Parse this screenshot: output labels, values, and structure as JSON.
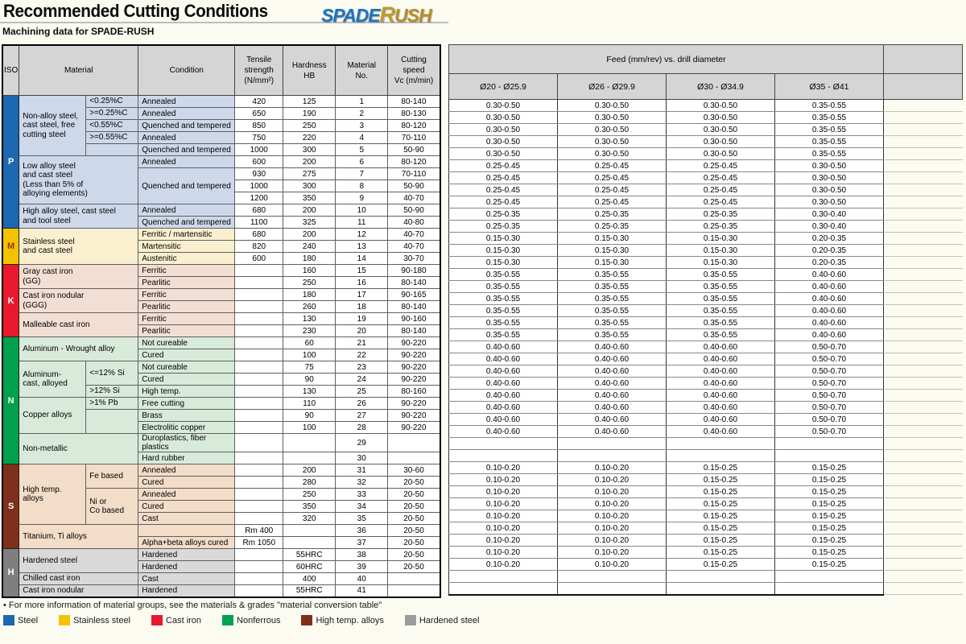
{
  "header": {
    "title": "Recommended Cutting Conditions",
    "subtitle": "Machining data for SPADE-RUSH",
    "logo": {
      "spade": "SPADE",
      "r": "R",
      "ush": "USH"
    }
  },
  "left_table": {
    "columns": {
      "iso": "ISO",
      "material": "Material",
      "condition": "Condition",
      "tensile": "Tensile\nstrength\n(N/mm²)",
      "hardness": "Hardness\nHB",
      "material_no": "Material\nNo.",
      "cutting_speed": "Cutting\nspeed\nVc (m/min)"
    },
    "sections": [
      {
        "iso": "P",
        "color": "#1b68b0",
        "letter_color": "#ffffff",
        "tint": "#cdd8ea",
        "groups": [
          {
            "material": "Non-alloy steel,\ncast steel, free\ncutting steel",
            "subs": [
              {
                "label": "<0.25%C",
                "rows": 1
              },
              {
                "label": ">=0.25%C",
                "rows": 1
              },
              {
                "label": "<0.55%C",
                "rows": 1
              },
              {
                "label": ">=0.55%C",
                "rows": 1
              },
              {
                "label": "",
                "rows": 1
              }
            ],
            "rows": [
              {
                "condition": "Annealed",
                "tensile": "420",
                "hardness": "125",
                "no": "1",
                "vc": "80-140"
              },
              {
                "condition": "Annealed",
                "tensile": "650",
                "hardness": "190",
                "no": "2",
                "vc": "80-130"
              },
              {
                "condition": "Quenched and tempered",
                "tensile": "850",
                "hardness": "250",
                "no": "3",
                "vc": "80-120"
              },
              {
                "condition": "Annealed",
                "tensile": "750",
                "hardness": "220",
                "no": "4",
                "vc": "70-110"
              },
              {
                "condition": "Quenched and tempered",
                "tensile": "1000",
                "hardness": "300",
                "no": "5",
                "vc": "50-90"
              }
            ]
          },
          {
            "material": "Low alloy steel\nand cast steel\n(Less than 5% of\nalloying elements)",
            "rows": [
              {
                "condition": "Annealed",
                "tensile": "600",
                "hardness": "200",
                "no": "6",
                "vc": "80-120"
              },
              {
                "condition": "Quenched and tempered",
                "condition_rows": 3,
                "tensile": "930",
                "hardness": "275",
                "no": "7",
                "vc": "70-110"
              },
              {
                "tensile": "1000",
                "hardness": "300",
                "no": "8",
                "vc": "50-90"
              },
              {
                "tensile": "1200",
                "hardness": "350",
                "no": "9",
                "vc": "40-70"
              }
            ]
          },
          {
            "material": "High alloy steel, cast steel\nand tool steel",
            "rows": [
              {
                "condition": "Annealed",
                "tensile": "680",
                "hardness": "200",
                "no": "10",
                "vc": "50-90"
              },
              {
                "condition": "Quenched and tempered",
                "tensile": "1100",
                "hardness": "325",
                "no": "11",
                "vc": "40-80"
              }
            ]
          }
        ]
      },
      {
        "iso": "M",
        "color": "#f4c300",
        "letter_color": "#9b3000",
        "tint": "#faf0cf",
        "groups": [
          {
            "material": "Stainless steel\nand cast steel",
            "rows": [
              {
                "condition": "Ferritic / martensitic",
                "tensile": "680",
                "hardness": "200",
                "no": "12",
                "vc": "40-70"
              },
              {
                "condition": "Martensitic",
                "tensile": "820",
                "hardness": "240",
                "no": "13",
                "vc": "40-70"
              },
              {
                "condition": "Austenitic",
                "tensile": "600",
                "hardness": "180",
                "no": "14",
                "vc": "30-70"
              }
            ]
          }
        ]
      },
      {
        "iso": "K",
        "color": "#e8192d",
        "letter_color": "#ffffff",
        "tint": "#f3ded3",
        "groups": [
          {
            "material": "Gray cast iron\n(GG)",
            "rows": [
              {
                "condition": "Ferritic",
                "tensile": "",
                "hardness": "160",
                "no": "15",
                "vc": "90-180"
              },
              {
                "condition": "Pearlitic",
                "tensile": "",
                "hardness": "250",
                "no": "16",
                "vc": "80-140"
              }
            ]
          },
          {
            "material": "Cast iron nodular\n(GGG)",
            "rows": [
              {
                "condition": "Ferritic",
                "tensile": "",
                "hardness": "180",
                "no": "17",
                "vc": "90-165"
              },
              {
                "condition": "Pearlitic",
                "tensile": "",
                "hardness": "260",
                "no": "18",
                "vc": "80-140"
              }
            ]
          },
          {
            "material": "Malleable cast iron",
            "rows": [
              {
                "condition": "Ferritic",
                "tensile": "",
                "hardness": "130",
                "no": "19",
                "vc": "90-160"
              },
              {
                "condition": "Pearlitic",
                "tensile": "",
                "hardness": "230",
                "no": "20",
                "vc": "80-140"
              }
            ]
          }
        ]
      },
      {
        "iso": "N",
        "color": "#00a04e",
        "letter_color": "#ffffff",
        "tint": "#d8ebdb",
        "groups": [
          {
            "material": "Aluminum - Wrought alloy",
            "rows": [
              {
                "condition": "Not cureable",
                "tensile": "",
                "hardness": "60",
                "no": "21",
                "vc": "90-220"
              },
              {
                "condition": "Cured",
                "tensile": "",
                "hardness": "100",
                "no": "22",
                "vc": "90-220"
              }
            ]
          },
          {
            "material": "Aluminum-\ncast, alloyed",
            "subs": [
              {
                "label": "<=12% Si",
                "rows": 2
              },
              {
                "label": ">12% Si",
                "rows": 1
              }
            ],
            "rows": [
              {
                "condition": "Not cureable",
                "tensile": "",
                "hardness": "75",
                "no": "23",
                "vc": "90-220"
              },
              {
                "condition": "Cured",
                "tensile": "",
                "hardness": "90",
                "no": "24",
                "vc": "90-220"
              },
              {
                "condition": "High temp.",
                "tensile": "",
                "hardness": "130",
                "no": "25",
                "vc": "80-160"
              }
            ]
          },
          {
            "material": "Copper alloys",
            "subs": [
              {
                "label": ">1% Pb",
                "rows": 1
              },
              {
                "label": "",
                "rows": 2
              }
            ],
            "rows": [
              {
                "condition": "Free cutting",
                "tensile": "",
                "hardness": "110",
                "no": "26",
                "vc": "90-220"
              },
              {
                "condition": "Brass",
                "tensile": "",
                "hardness": "90",
                "no": "27",
                "vc": "90-220"
              },
              {
                "condition": "Electrolitic copper",
                "tensile": "",
                "hardness": "100",
                "no": "28",
                "vc": "90-220"
              }
            ]
          },
          {
            "material": "Non-metallic",
            "rows": [
              {
                "condition": "Duroplastics, fiber plastics",
                "tensile": "",
                "hardness": "",
                "no": "29",
                "vc": ""
              },
              {
                "condition": "Hard rubber",
                "tensile": "",
                "hardness": "",
                "no": "30",
                "vc": ""
              }
            ]
          }
        ]
      },
      {
        "iso": "S",
        "color": "#7e301b",
        "letter_color": "#ffffff",
        "tint": "#f3dcc8",
        "groups": [
          {
            "material": "High temp.\nalloys",
            "subs": [
              {
                "label": "Fe based",
                "rows": 2
              },
              {
                "label": "Ni or\nCo based",
                "rows": 3
              }
            ],
            "rows": [
              {
                "condition": "Annealed",
                "tensile": "",
                "hardness": "200",
                "no": "31",
                "vc": "30-60"
              },
              {
                "condition": "Cured",
                "tensile": "",
                "hardness": "280",
                "no": "32",
                "vc": "20-50"
              },
              {
                "condition": "Annealed",
                "tensile": "",
                "hardness": "250",
                "no": "33",
                "vc": "20-50"
              },
              {
                "condition": "Cured",
                "tensile": "",
                "hardness": "350",
                "no": "34",
                "vc": "20-50"
              },
              {
                "condition": "Cast",
                "tensile": "",
                "hardness": "320",
                "no": "35",
                "vc": "20-50"
              }
            ]
          },
          {
            "material": "Titanium, Ti alloys",
            "rows": [
              {
                "condition": "",
                "tensile": "Rm 400",
                "hardness": "",
                "no": "36",
                "vc": "20-50"
              },
              {
                "condition": "Alpha+beta alloys cured",
                "tensile": "Rm 1050",
                "hardness": "",
                "no": "37",
                "vc": "20-50"
              }
            ]
          }
        ]
      },
      {
        "iso": "H",
        "color": "#7f7f7f",
        "letter_color": "#ffffff",
        "tint": "#d9d9d9",
        "groups": [
          {
            "material": "Hardened steel",
            "rows": [
              {
                "condition": "Hardened",
                "tensile": "",
                "hardness": "55HRC",
                "no": "38",
                "vc": "20-50"
              },
              {
                "condition": "Hardened",
                "tensile": "",
                "hardness": "60HRC",
                "no": "39",
                "vc": "20-50"
              }
            ]
          },
          {
            "material": "Chilled cast iron",
            "rows": [
              {
                "condition": "Cast",
                "tensile": "",
                "hardness": "400",
                "no": "40",
                "vc": ""
              }
            ]
          },
          {
            "material": "Cast iron nodular",
            "rows": [
              {
                "condition": "Hardened",
                "tensile": "",
                "hardness": "55HRC",
                "no": "41",
                "vc": ""
              }
            ]
          }
        ]
      }
    ]
  },
  "right_table": {
    "title": "Feed (mm/rev) vs. drill diameter",
    "columns": [
      "Ø20 - Ø25.9",
      "Ø26 - Ø29.9",
      "Ø30 - Ø34.9",
      "Ø35 - Ø41"
    ],
    "rows": [
      [
        "0.30-0.50",
        "0.30-0.50",
        "0.30-0.50",
        "0.35-0.55"
      ],
      [
        "0.30-0.50",
        "0.30-0.50",
        "0.30-0.50",
        "0.35-0.55"
      ],
      [
        "0.30-0.50",
        "0.30-0.50",
        "0.30-0.50",
        "0.35-0.55"
      ],
      [
        "0.30-0.50",
        "0.30-0.50",
        "0.30-0.50",
        "0.35-0.55"
      ],
      [
        "0.30-0.50",
        "0.30-0.50",
        "0.30-0.50",
        "0.35-0.55"
      ],
      [
        "0.25-0.45",
        "0.25-0.45",
        "0.25-0.45",
        "0.30-0.50"
      ],
      [
        "0.25-0.45",
        "0.25-0.45",
        "0.25-0.45",
        "0.30-0.50"
      ],
      [
        "0.25-0.45",
        "0.25-0.45",
        "0.25-0.45",
        "0.30-0.50"
      ],
      [
        "0.25-0.45",
        "0.25-0.45",
        "0.25-0.45",
        "0.30-0.50"
      ],
      [
        "0.25-0.35",
        "0.25-0.35",
        "0.25-0.35",
        "0.30-0.40"
      ],
      [
        "0.25-0.35",
        "0.25-0.35",
        "0.25-0.35",
        "0.30-0.40"
      ],
      [
        "0.15-0.30",
        "0.15-0.30",
        "0.15-0.30",
        "0.20-0.35"
      ],
      [
        "0.15-0.30",
        "0.15-0.30",
        "0.15-0.30",
        "0.20-0.35"
      ],
      [
        "0.15-0.30",
        "0.15-0.30",
        "0.15-0.30",
        "0.20-0.35"
      ],
      [
        "0.35-0.55",
        "0.35-0.55",
        "0.35-0.55",
        "0.40-0.60"
      ],
      [
        "0.35-0.55",
        "0.35-0.55",
        "0.35-0.55",
        "0.40-0.60"
      ],
      [
        "0.35-0.55",
        "0.35-0.55",
        "0.35-0.55",
        "0.40-0.60"
      ],
      [
        "0.35-0.55",
        "0.35-0.55",
        "0.35-0.55",
        "0.40-0.60"
      ],
      [
        "0.35-0.55",
        "0.35-0.55",
        "0.35-0.55",
        "0.40-0.60"
      ],
      [
        "0.35-0.55",
        "0.35-0.55",
        "0.35-0.55",
        "0.40-0.60"
      ],
      [
        "0.40-0.60",
        "0.40-0.60",
        "0.40-0.60",
        "0.50-0.70"
      ],
      [
        "0.40-0.60",
        "0.40-0.60",
        "0.40-0.60",
        "0.50-0.70"
      ],
      [
        "0.40-0.60",
        "0.40-0.60",
        "0.40-0.60",
        "0.50-0.70"
      ],
      [
        "0.40-0.60",
        "0.40-0.60",
        "0.40-0.60",
        "0.50-0.70"
      ],
      [
        "0.40-0.60",
        "0.40-0.60",
        "0.40-0.60",
        "0.50-0.70"
      ],
      [
        "0.40-0.60",
        "0.40-0.60",
        "0.40-0.60",
        "0.50-0.70"
      ],
      [
        "0.40-0.60",
        "0.40-0.60",
        "0.40-0.60",
        "0.50-0.70"
      ],
      [
        "0.40-0.60",
        "0.40-0.60",
        "0.40-0.60",
        "0.50-0.70"
      ],
      [
        "",
        "",
        "",
        ""
      ],
      [
        "",
        "",
        "",
        ""
      ],
      [
        "0.10-0.20",
        "0.10-0.20",
        "0.15-0.25",
        "0.15-0.25"
      ],
      [
        "0.10-0.20",
        "0.10-0.20",
        "0.15-0.25",
        "0.15-0.25"
      ],
      [
        "0.10-0.20",
        "0.10-0.20",
        "0.15-0.25",
        "0.15-0.25"
      ],
      [
        "0.10-0.20",
        "0.10-0.20",
        "0.15-0.25",
        "0.15-0.25"
      ],
      [
        "0.10-0.20",
        "0.10-0.20",
        "0.15-0.25",
        "0.15-0.25"
      ],
      [
        "0.10-0.20",
        "0.10-0.20",
        "0.15-0.25",
        "0.15-0.25"
      ],
      [
        "0.10-0.20",
        "0.10-0.20",
        "0.15-0.25",
        "0.15-0.25"
      ],
      [
        "0.10-0.20",
        "0.10-0.20",
        "0.15-0.25",
        "0.15-0.25"
      ],
      [
        "0.10-0.20",
        "0.10-0.20",
        "0.15-0.25",
        "0.15-0.25"
      ],
      [
        "",
        "",
        "",
        ""
      ],
      [
        "",
        "",
        "",
        ""
      ]
    ]
  },
  "footer": {
    "note": "• For more information of material groups, see the materials & grades \"material conversion table\"",
    "legend": [
      {
        "label": "Steel",
        "color": "#1b68b0"
      },
      {
        "label": "Stainless steel",
        "color": "#f4c300"
      },
      {
        "label": "Cast iron",
        "color": "#e8192d"
      },
      {
        "label": "Nonferrous",
        "color": "#00a04e"
      },
      {
        "label": "High temp. alloys",
        "color": "#7e301b"
      },
      {
        "label": "Hardened steel",
        "color": "#9c9c9c"
      }
    ]
  }
}
